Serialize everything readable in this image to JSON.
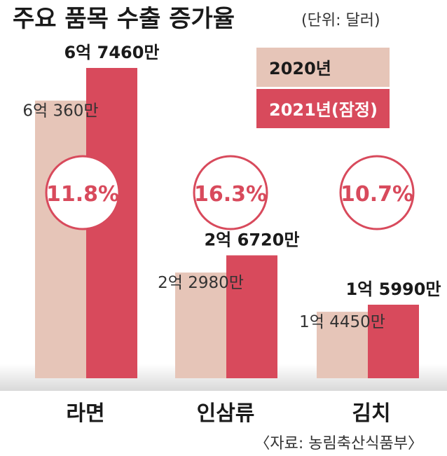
{
  "chart_data": {
    "type": "bar",
    "title": "주요 품목 수출 증가율",
    "unit_note": "(단위: 달러)",
    "categories": [
      "라면",
      "인삼류",
      "김치"
    ],
    "series": [
      {
        "name": "2020년",
        "color": "#e6c5b8",
        "values": [
          603600000,
          229800000,
          144500000
        ],
        "labels": [
          "6억 360만",
          "2억 2980만",
          "1억 4450만"
        ]
      },
      {
        "name": "2021년(잠정)",
        "color": "#d84a5c",
        "values": [
          674600000,
          267200000,
          159900000
        ],
        "labels": [
          "6억 7460만",
          "2억 6720만",
          "1억 5990만"
        ]
      }
    ],
    "growth_rates": [
      "11.8%",
      "16.3%",
      "10.7%"
    ],
    "source": "〈자료: 농림축산식품부〉",
    "ylim": [
      0,
      674600000
    ]
  },
  "colors": {
    "accent": "#d84a5c",
    "base": "#e6c5b8",
    "text": "#1a1a1a",
    "circle_bg": "#ffffff"
  }
}
